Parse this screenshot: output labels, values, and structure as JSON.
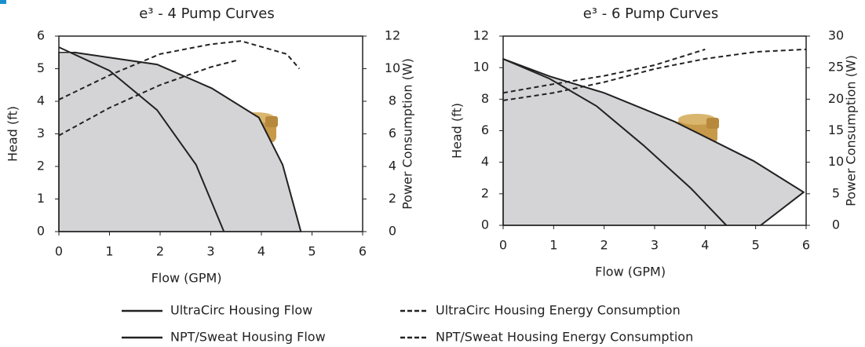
{
  "chart_data": [
    {
      "type": "line",
      "title": "e³ - 4 Pump Curves",
      "x_label": "Flow (GPM)",
      "y_label": "Head (ft)",
      "y2_label": "Power Consumption (W)",
      "xlim": [
        0,
        6
      ],
      "ylim": [
        0,
        6
      ],
      "y2lim": [
        0,
        12
      ],
      "xticks": [
        0,
        1,
        2,
        3,
        4,
        5,
        6
      ],
      "yticks": [
        0,
        1,
        2,
        3,
        4,
        5,
        6
      ],
      "y2ticks": [
        0,
        2,
        4,
        6,
        8,
        10,
        12
      ],
      "area_color": "#d4d4d6",
      "series": [
        {
          "name": "UltraCirc Housing Flow",
          "color": "#222222",
          "line_style": "solid",
          "x": [
            0.3,
            1.94,
            3.02,
            3.95,
            4.42,
            4.78
          ],
          "values": [
            5.5,
            5.13,
            4.4,
            3.5,
            2.05,
            0
          ]
        },
        {
          "name": "NPT/Sweat Housing Flow",
          "color": "#222222",
          "line_style": "solid",
          "x": [
            0,
            1,
            1.94,
            2.71,
            3.26
          ],
          "values": [
            5.66,
            4.94,
            3.73,
            2.05,
            0
          ]
        },
        {
          "name": "UltraCirc Housing Energy Consumption",
          "color": "#222222",
          "line_style": "dashed",
          "axis": "y2",
          "x": [
            0,
            1,
            2,
            3,
            3.6,
            4.5,
            4.75
          ],
          "values": [
            8.1,
            9.6,
            10.9,
            11.5,
            11.7,
            10.9,
            10.0
          ]
        },
        {
          "name": "NPT/Sweat Housing Energy Consumption",
          "color": "#222222",
          "line_style": "dashed",
          "axis": "y2",
          "x": [
            0,
            1,
            2,
            3,
            3.5
          ],
          "values": [
            5.9,
            7.6,
            9.0,
            10.1,
            10.5
          ]
        }
      ]
    },
    {
      "type": "line",
      "title": "e³ - 6 Pump Curves",
      "x_label": "Flow (GPM)",
      "y_label": "Head (ft)",
      "y2_label": "Power Consumption (W)",
      "xlim": [
        0,
        6
      ],
      "ylim": [
        0,
        12
      ],
      "y2lim": [
        0,
        30
      ],
      "xticks": [
        0,
        1,
        2,
        3,
        4,
        5,
        6
      ],
      "yticks": [
        0,
        2,
        4,
        6,
        8,
        10,
        12
      ],
      "y2ticks": [
        0,
        5,
        10,
        15,
        20,
        25,
        30
      ],
      "area_color": "#d4d4d6",
      "series": [
        {
          "name": "UltraCirc Housing Flow",
          "color": "#222222",
          "line_style": "solid",
          "x": [
            0,
            0.92,
            2,
            3.4,
            4.96,
            5.95,
            5.1
          ],
          "values": [
            10.55,
            9.45,
            8.4,
            6.57,
            4.08,
            2.1,
            0
          ]
        },
        {
          "name": "NPT/Sweat Housing Flow",
          "color": "#222222",
          "line_style": "solid",
          "x": [
            0,
            0.92,
            1.85,
            2.78,
            3.72,
            4.42
          ],
          "values": [
            10.55,
            9.3,
            7.56,
            5.07,
            2.34,
            0
          ]
        },
        {
          "name": "UltraCirc Housing Energy Consumption",
          "color": "#222222",
          "line_style": "dashed",
          "axis": "y2",
          "x": [
            0,
            1,
            2,
            3,
            4
          ],
          "values": [
            21.0,
            22.4,
            23.7,
            25.4,
            27.9
          ]
        },
        {
          "name": "NPT/Sweat Housing Energy Consumption",
          "color": "#222222",
          "line_style": "dashed",
          "axis": "y2",
          "x": [
            0,
            1,
            2,
            3,
            4,
            5,
            6
          ],
          "values": [
            19.8,
            21.0,
            22.7,
            24.8,
            26.4,
            27.5,
            27.9
          ]
        }
      ]
    }
  ]
}
